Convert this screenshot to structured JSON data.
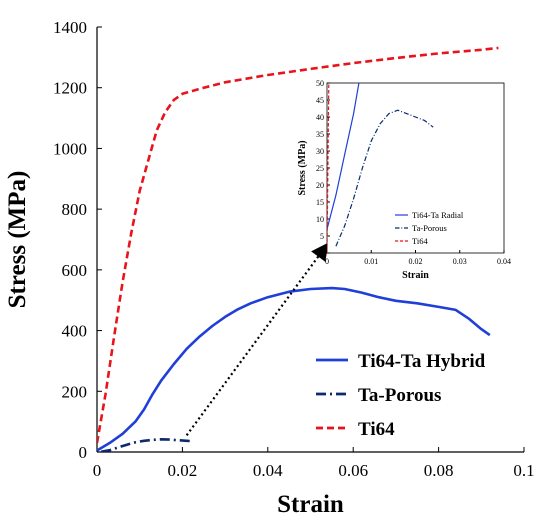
{
  "chart_data": [
    {
      "type": "line",
      "title": "",
      "xlabel": "Strain",
      "ylabel": "Stress (MPa)",
      "xlim": [
        0,
        0.1
      ],
      "ylim": [
        0,
        1400
      ],
      "xticks": [
        0,
        0.02,
        0.04,
        0.06,
        0.08,
        0.1
      ],
      "xtick_labels": [
        "0",
        "0.02",
        "0.04",
        "0.06",
        "0.08",
        "0.1"
      ],
      "yticks": [
        0,
        200,
        400,
        600,
        800,
        1000,
        1200,
        1400
      ],
      "ytick_labels": [
        "0",
        "200",
        "400",
        "600",
        "800",
        "1000",
        "1200",
        "1400"
      ],
      "grid": false,
      "legend_position": "bottom-right",
      "series": [
        {
          "name": "Ti64-Ta Hybrid",
          "color": "#1f3fd8",
          "style": "solid",
          "x": [
            0,
            0.003,
            0.006,
            0.009,
            0.011,
            0.013,
            0.015,
            0.018,
            0.021,
            0.024,
            0.027,
            0.03,
            0.033,
            0.036,
            0.04,
            0.045,
            0.05,
            0.055,
            0.058,
            0.062,
            0.066,
            0.07,
            0.075,
            0.08,
            0.084,
            0.087,
            0.09,
            0.092
          ],
          "y": [
            5,
            30,
            60,
            100,
            140,
            190,
            235,
            290,
            340,
            380,
            415,
            445,
            470,
            490,
            510,
            528,
            537,
            540,
            537,
            525,
            510,
            498,
            490,
            478,
            468,
            440,
            405,
            385
          ]
        },
        {
          "name": "Ta-Porous",
          "color": "#0b2a70",
          "style": "dash-dot",
          "x": [
            0.001,
            0.003,
            0.005,
            0.007,
            0.009,
            0.011,
            0.013,
            0.015,
            0.017,
            0.019,
            0.021,
            0.022
          ],
          "y": [
            1,
            6,
            15,
            24,
            32,
            37,
            40,
            42,
            41,
            39,
            37,
            36
          ]
        },
        {
          "name": "Ti64",
          "color": "#e8141c",
          "style": "dashed",
          "x": [
            0,
            0.002,
            0.004,
            0.006,
            0.008,
            0.01,
            0.012,
            0.014,
            0.016,
            0.018,
            0.02,
            0.025,
            0.03,
            0.04,
            0.05,
            0.06,
            0.07,
            0.08,
            0.09,
            0.094
          ],
          "y": [
            30,
            190,
            380,
            560,
            720,
            860,
            960,
            1060,
            1120,
            1160,
            1180,
            1200,
            1218,
            1242,
            1262,
            1281,
            1298,
            1313,
            1325,
            1331
          ]
        }
      ]
    },
    {
      "type": "line",
      "title": "",
      "xlabel": "Strain",
      "ylabel": "Stress (MPa)",
      "xlim": [
        0,
        0.04
      ],
      "ylim": [
        0,
        50
      ],
      "xticks": [
        0,
        0.01,
        0.02,
        0.03,
        0.04
      ],
      "xtick_labels": [
        "0",
        "0.01",
        "0.02",
        "0.03",
        "0.04"
      ],
      "yticks": [
        0,
        5,
        10,
        15,
        20,
        25,
        30,
        35,
        40,
        45,
        50
      ],
      "ytick_labels": [
        "0",
        "5",
        "10",
        "15",
        "20",
        "25",
        "30",
        "35",
        "40",
        "45",
        "50"
      ],
      "grid": false,
      "legend_position": "bottom-right",
      "series": [
        {
          "name": "Ti64-Ta Radial",
          "color": "#1f3fd8",
          "style": "solid",
          "x": [
            0,
            0.002,
            0.004,
            0.006,
            0.0072
          ],
          "y": [
            7,
            17,
            29,
            41,
            50
          ]
        },
        {
          "name": "Ta-Porous",
          "color": "#0b2a70",
          "style": "dash-dot",
          "x": [
            0.002,
            0.004,
            0.006,
            0.008,
            0.01,
            0.012,
            0.014,
            0.016,
            0.018,
            0.02,
            0.022,
            0.024
          ],
          "y": [
            2,
            8,
            16,
            25,
            33,
            38,
            41,
            42,
            41,
            40,
            39,
            37
          ]
        },
        {
          "name": "Ti64",
          "color": "#e8141c",
          "style": "dashed",
          "x": [
            0,
            0.0002,
            0.0004
          ],
          "y": [
            0,
            25,
            50
          ]
        }
      ]
    }
  ]
}
